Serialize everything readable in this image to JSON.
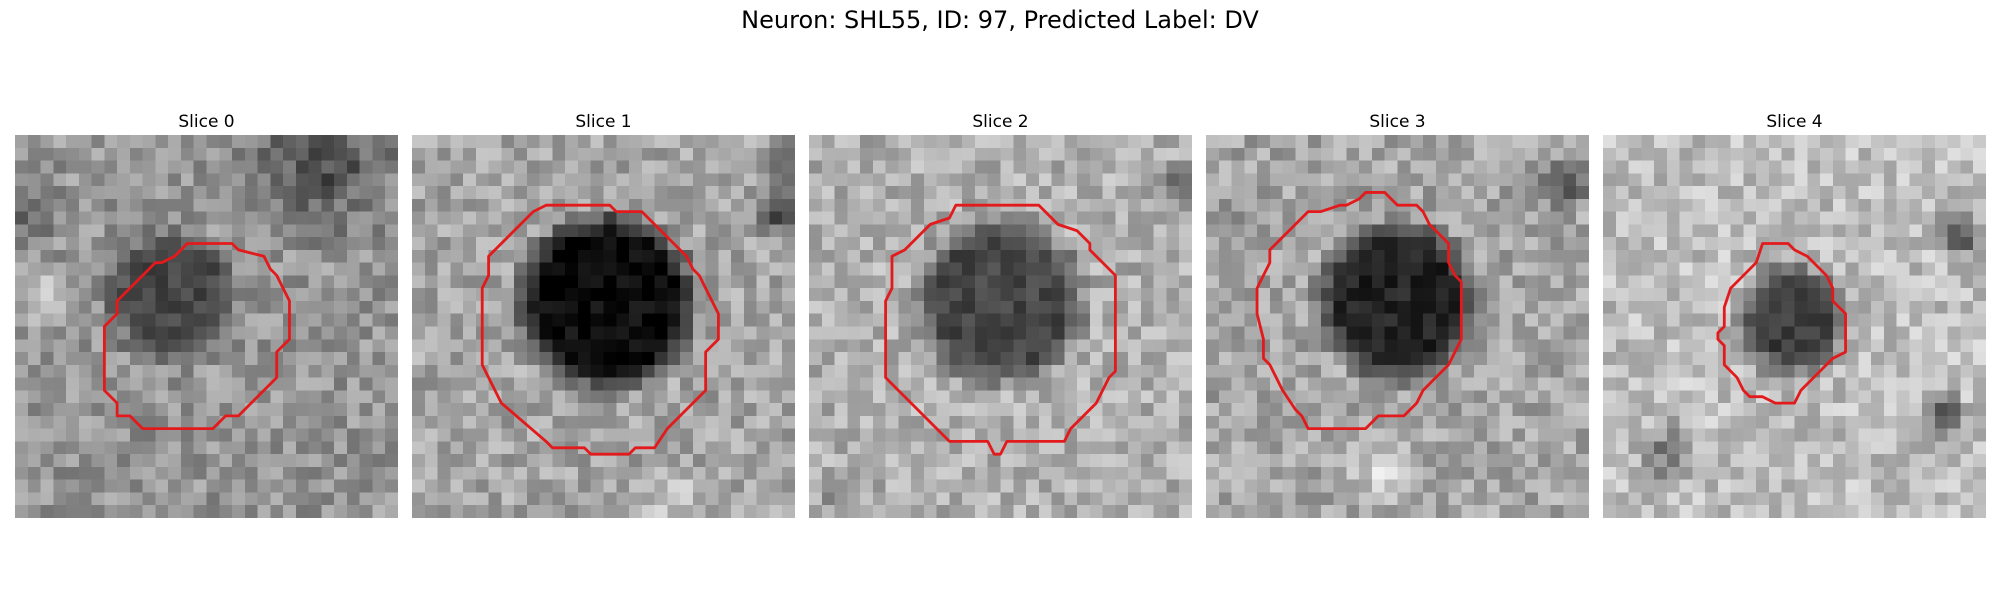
{
  "figure": {
    "title": "Neuron: SHL55, ID: 97, Predicted Label: DV"
  },
  "panels": [
    {
      "title": "Slice 0"
    },
    {
      "title": "Slice 1"
    },
    {
      "title": "Slice 2"
    },
    {
      "title": "Slice 3"
    },
    {
      "title": "Slice 4"
    }
  ],
  "colors": {
    "contour": "#e31a1c",
    "colormap": "gray"
  }
}
